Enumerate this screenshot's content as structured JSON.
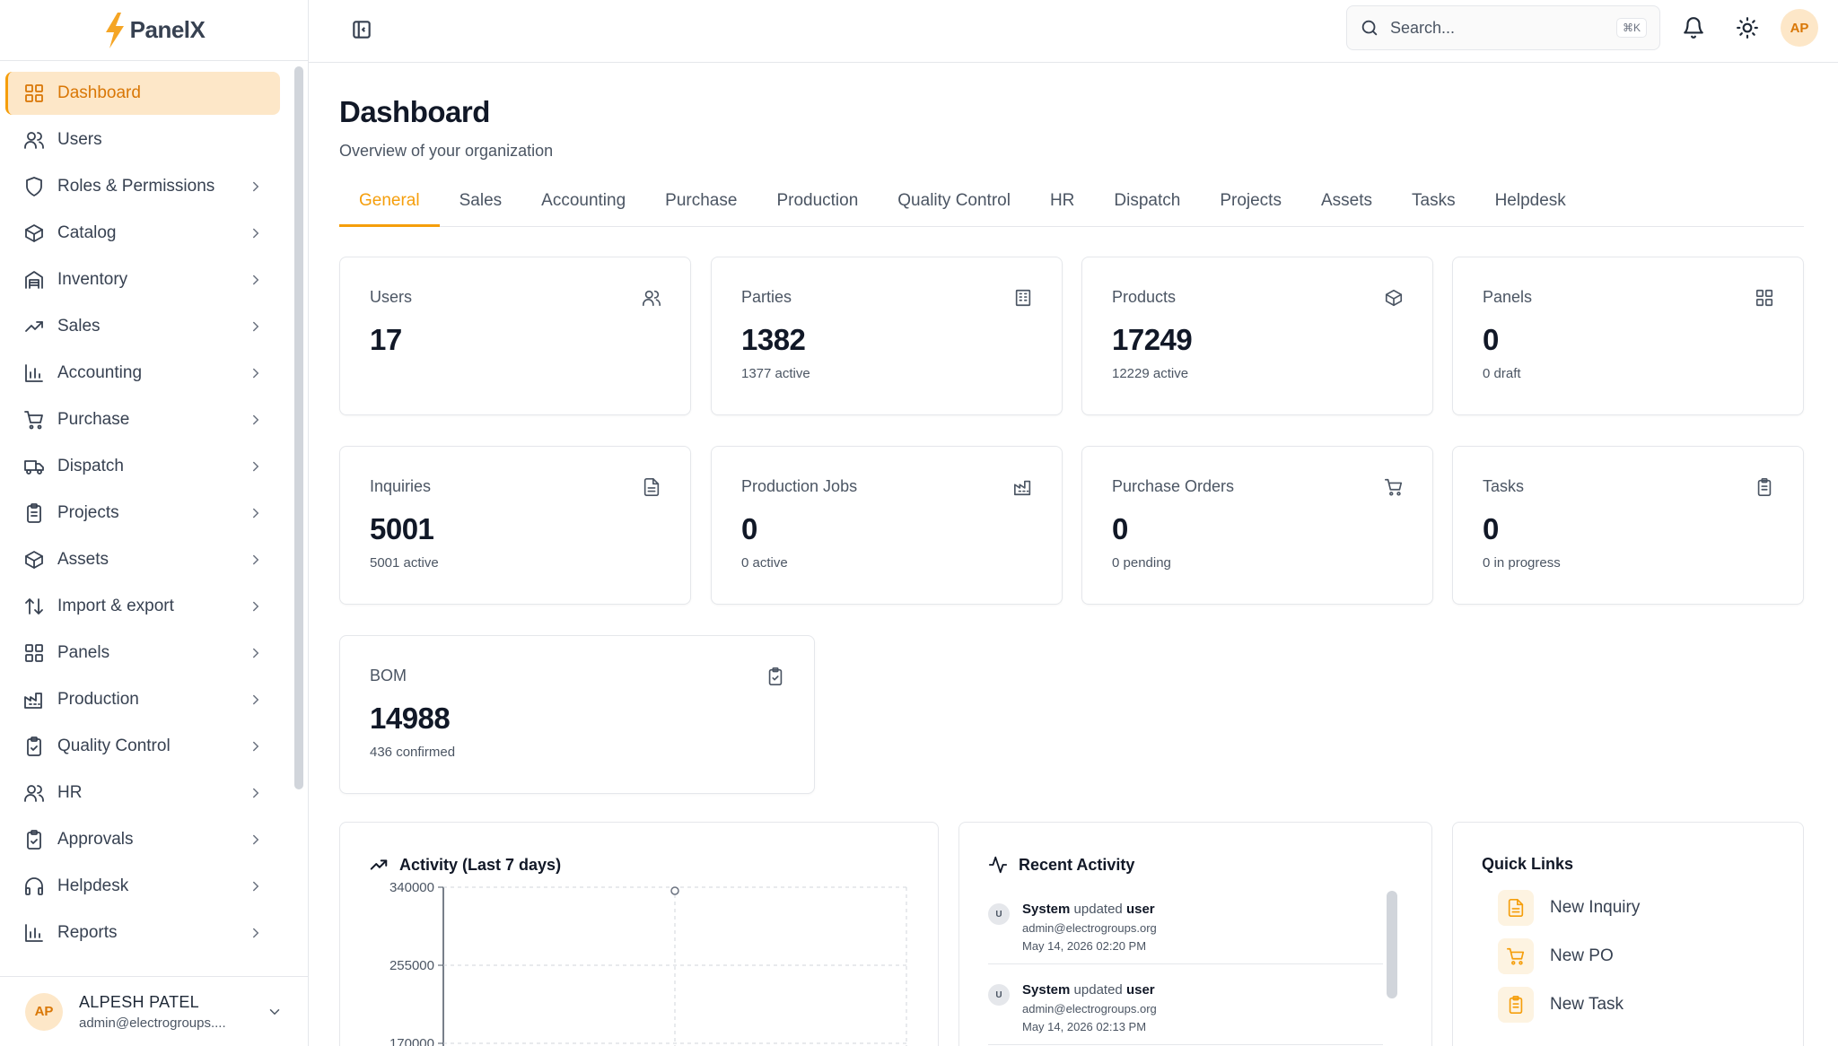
{
  "brand": {
    "name": "PanelX"
  },
  "sidebar": {
    "items": [
      {
        "label": "Dashboard",
        "icon": "dashboard-grid-icon",
        "active": true,
        "has_children": false
      },
      {
        "label": "Users",
        "icon": "users-icon",
        "has_children": false
      },
      {
        "label": "Roles & Permissions",
        "icon": "shield-icon",
        "has_children": true
      },
      {
        "label": "Catalog",
        "icon": "package-icon",
        "has_children": true
      },
      {
        "label": "Inventory",
        "icon": "warehouse-icon",
        "has_children": true
      },
      {
        "label": "Sales",
        "icon": "trending-up-icon",
        "has_children": true
      },
      {
        "label": "Accounting",
        "icon": "bar-chart-icon",
        "has_children": true
      },
      {
        "label": "Purchase",
        "icon": "cart-icon",
        "has_children": true
      },
      {
        "label": "Dispatch",
        "icon": "truck-icon",
        "has_children": true
      },
      {
        "label": "Projects",
        "icon": "clipboard-icon",
        "has_children": true
      },
      {
        "label": "Assets",
        "icon": "package-icon",
        "has_children": true
      },
      {
        "label": "Import & export",
        "icon": "arrow-up-down-icon",
        "has_children": true
      },
      {
        "label": "Panels",
        "icon": "dashboard-grid-icon",
        "has_children": true
      },
      {
        "label": "Production",
        "icon": "factory-icon",
        "has_children": true
      },
      {
        "label": "Quality Control",
        "icon": "clipboard-check-icon",
        "has_children": true
      },
      {
        "label": "HR",
        "icon": "users-icon",
        "has_children": true
      },
      {
        "label": "Approvals",
        "icon": "clipboard-check-icon",
        "has_children": true
      },
      {
        "label": "Helpdesk",
        "icon": "headphones-icon",
        "has_children": true
      },
      {
        "label": "Reports",
        "icon": "bar-chart-icon",
        "has_children": true
      }
    ]
  },
  "user": {
    "initials": "AP",
    "name": "ALPESH PATEL",
    "email": "admin@electrogroups...."
  },
  "topbar": {
    "search_placeholder": "Search...",
    "search_shortcut": "⌘K"
  },
  "page": {
    "title": "Dashboard",
    "subtitle": "Overview of your organization",
    "tabs": [
      "General",
      "Sales",
      "Accounting",
      "Purchase",
      "Production",
      "Quality Control",
      "HR",
      "Dispatch",
      "Projects",
      "Assets",
      "Tasks",
      "Helpdesk"
    ],
    "active_tab": "General"
  },
  "stats": [
    {
      "title": "Users",
      "value": "17",
      "sub": "",
      "icon": "users-icon"
    },
    {
      "title": "Parties",
      "value": "1382",
      "sub": "1377 active",
      "icon": "building-icon"
    },
    {
      "title": "Products",
      "value": "17249",
      "sub": "12229 active",
      "icon": "package-icon"
    },
    {
      "title": "Panels",
      "value": "0",
      "sub": "0 draft",
      "icon": "dashboard-grid-icon"
    },
    {
      "title": "Inquiries",
      "value": "5001",
      "sub": "5001 active",
      "icon": "file-text-icon"
    },
    {
      "title": "Production Jobs",
      "value": "0",
      "sub": "0 active",
      "icon": "factory-icon"
    },
    {
      "title": "Purchase Orders",
      "value": "0",
      "sub": "0 pending",
      "icon": "cart-icon"
    },
    {
      "title": "Tasks",
      "value": "0",
      "sub": "0 in progress",
      "icon": "clipboard-icon"
    },
    {
      "title": "BOM",
      "value": "14988",
      "sub": "436 confirmed",
      "icon": "clipboard-check-icon"
    }
  ],
  "activity_chart": {
    "title": "Activity (Last 7 days)",
    "icon": "trending-up-icon"
  },
  "chart_data": {
    "type": "line",
    "title": "Activity (Last 7 days)",
    "y_ticks": [
      "340000",
      "255000",
      "170000"
    ],
    "ylim": [
      0,
      340000
    ],
    "grid": true,
    "visible_point": {
      "value": 340000
    }
  },
  "recent_activity": {
    "title": "Recent Activity",
    "icon": "activity-icon",
    "items": [
      {
        "badge": "U",
        "actor": "System",
        "action": "updated",
        "target": "user",
        "email": "admin@electrogroups.org",
        "time": "May 14, 2026 02:20 PM"
      },
      {
        "badge": "U",
        "actor": "System",
        "action": "updated",
        "target": "user",
        "email": "admin@electrogroups.org",
        "time": "May 14, 2026 02:13 PM"
      }
    ]
  },
  "quick_links": {
    "title": "Quick Links",
    "items": [
      {
        "label": "New Inquiry",
        "icon": "file-text-icon"
      },
      {
        "label": "New PO",
        "icon": "cart-icon"
      },
      {
        "label": "New Task",
        "icon": "clipboard-icon"
      }
    ]
  },
  "colors": {
    "accent": "#f59e0b",
    "accent_bg": "#fde7c8",
    "border": "#e5e7eb",
    "text": "#1f2937",
    "muted": "#4b5563"
  }
}
